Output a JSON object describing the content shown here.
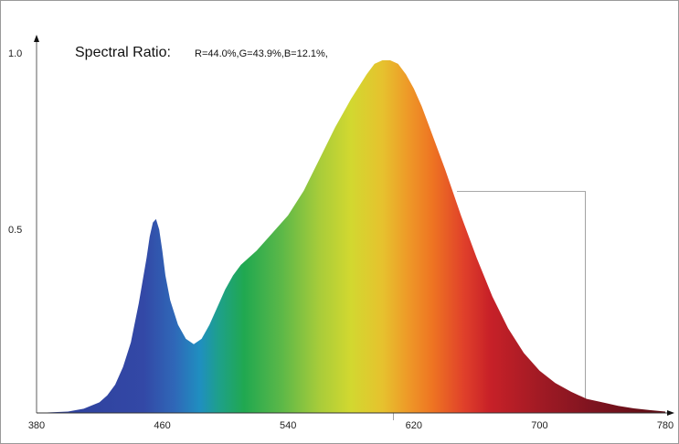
{
  "chart_data": {
    "type": "area",
    "title": "Spectral Ratio:",
    "subtitle": "R=44.0%,G=43.9%,B=12.1%,",
    "xlabel": "",
    "ylabel": "",
    "xlim": [
      380,
      780
    ],
    "ylim": [
      0,
      1.0
    ],
    "x_ticks": [
      "380",
      "460",
      "540",
      "620",
      "700",
      "780"
    ],
    "y_ticks": [
      "1.0",
      "0.5"
    ],
    "grid": false,
    "fill": "visible-spectrum gradient",
    "series": [
      {
        "x": [
          380,
          400,
          410,
          420,
          425,
          430,
          435,
          440,
          445,
          450,
          452,
          454,
          456,
          458,
          460,
          462,
          465,
          470,
          475,
          480,
          485,
          490,
          495,
          500,
          505,
          510,
          520,
          530,
          540,
          550,
          560,
          570,
          580,
          590,
          595,
          600,
          605,
          610,
          615,
          620,
          625,
          630,
          640,
          650,
          660,
          670,
          680,
          690,
          700,
          710,
          720,
          725,
          730,
          740,
          750,
          760,
          770,
          780
        ],
        "values": [
          0.0,
          0.004,
          0.012,
          0.03,
          0.05,
          0.08,
          0.13,
          0.2,
          0.31,
          0.44,
          0.5,
          0.54,
          0.55,
          0.52,
          0.46,
          0.39,
          0.32,
          0.25,
          0.21,
          0.195,
          0.21,
          0.25,
          0.3,
          0.35,
          0.39,
          0.42,
          0.46,
          0.51,
          0.56,
          0.63,
          0.72,
          0.81,
          0.89,
          0.96,
          0.99,
          1.0,
          1.0,
          0.99,
          0.96,
          0.92,
          0.87,
          0.81,
          0.69,
          0.56,
          0.44,
          0.33,
          0.24,
          0.17,
          0.12,
          0.085,
          0.06,
          0.05,
          0.04,
          0.03,
          0.02,
          0.013,
          0.008,
          0.004
        ]
      }
    ]
  }
}
